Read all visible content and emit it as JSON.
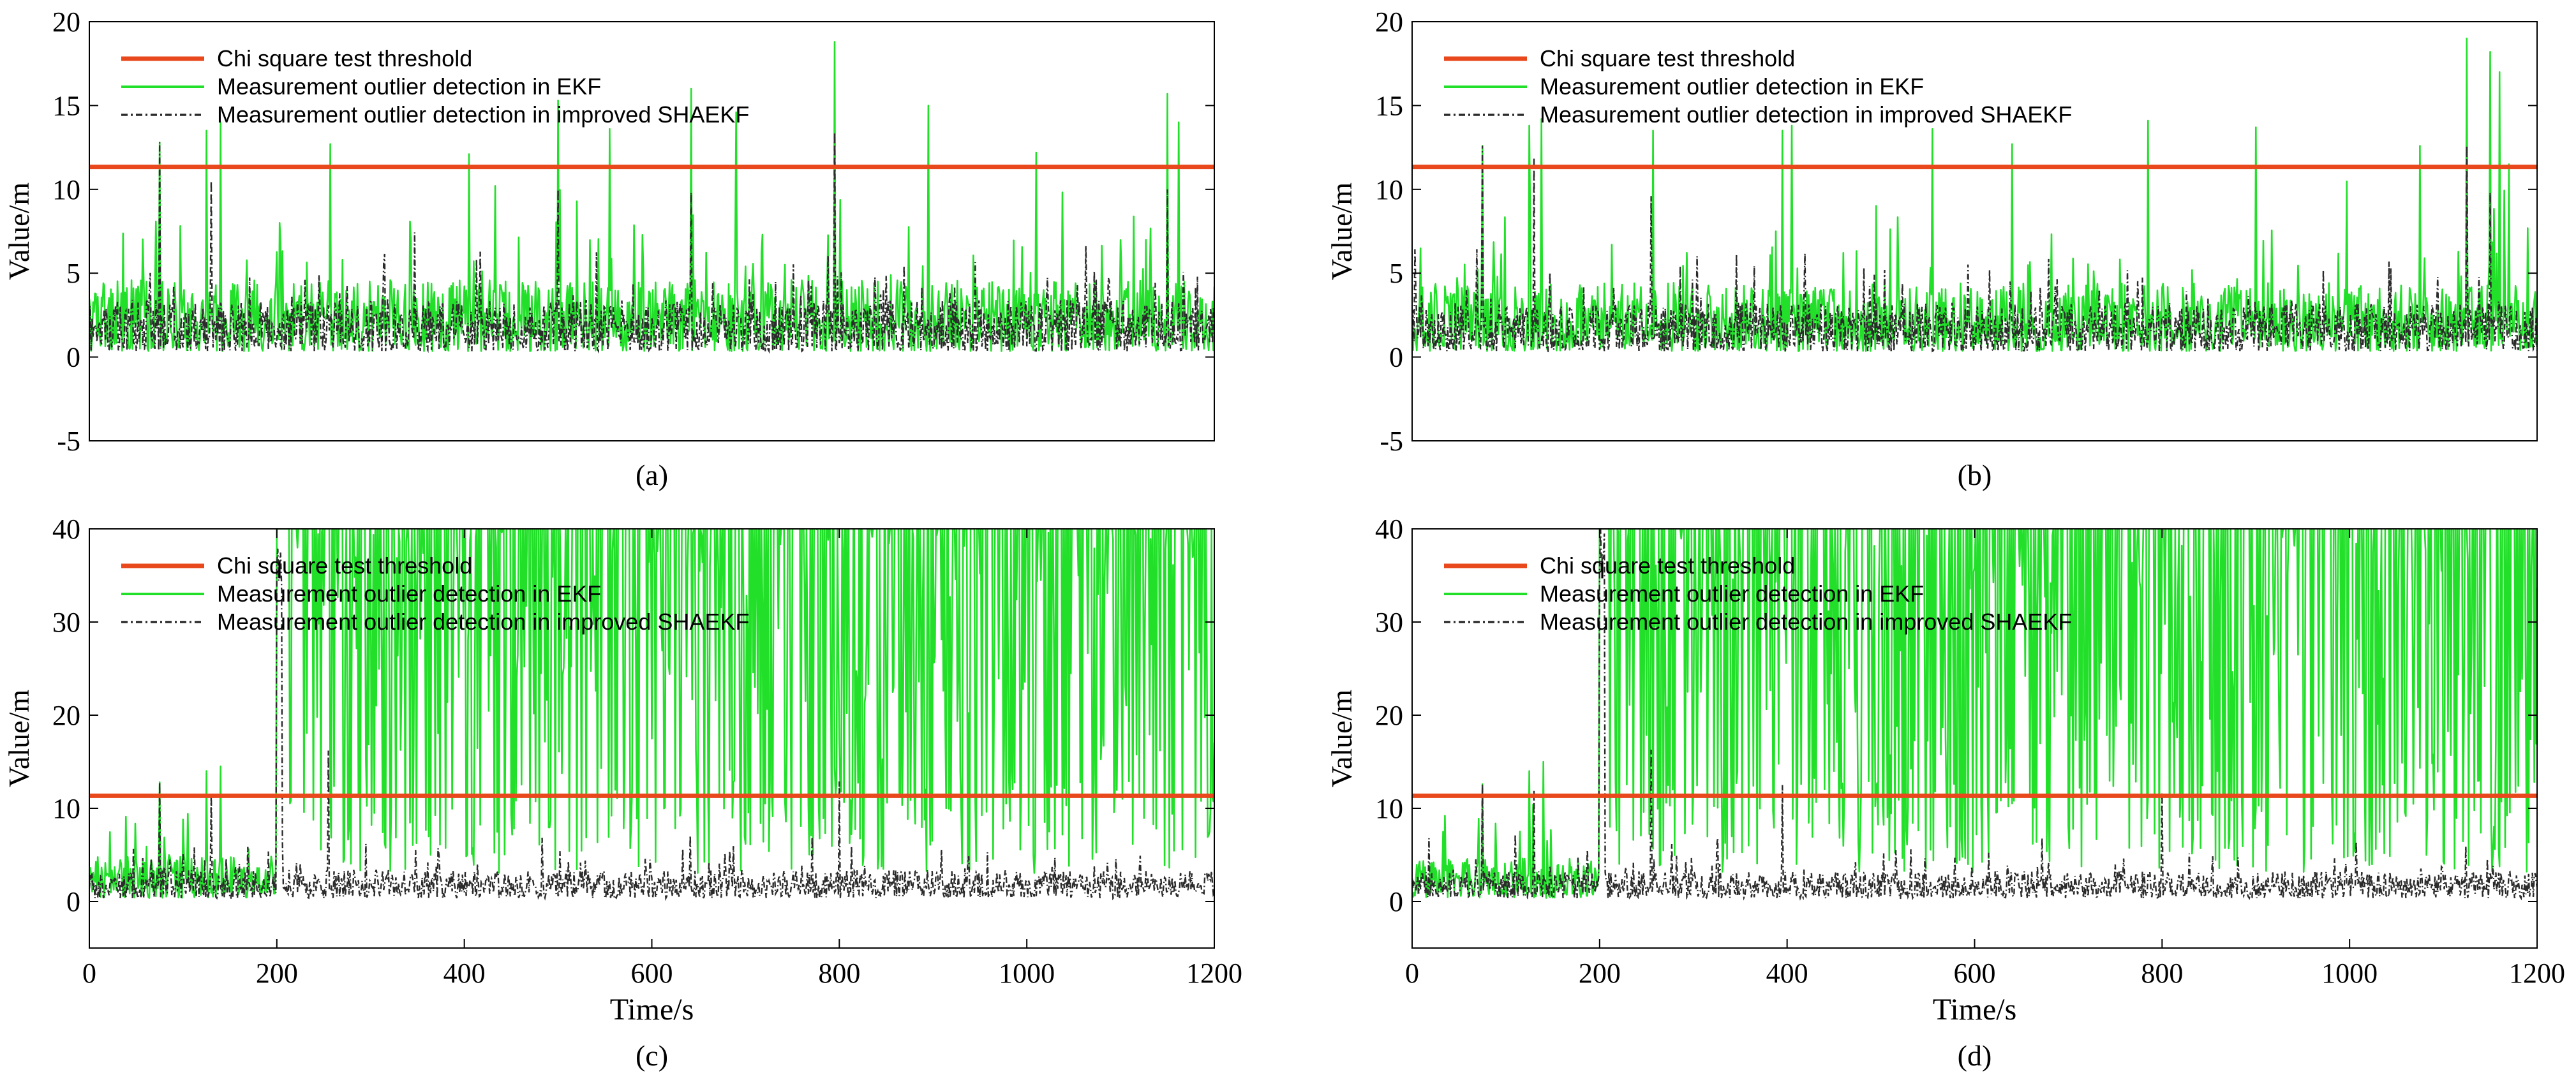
{
  "figure": {
    "legend_labels": [
      "Chi square test threshold",
      "Measurement outlier detection in EKF",
      "Measurement outlier detection in improved SHAEKF"
    ],
    "colors": {
      "threshold": "#e8481b",
      "ekf": "#22e02a",
      "shaekf": "#2b2b2b",
      "axis": "#000000"
    }
  },
  "chart_data": [
    {
      "id": "a",
      "type": "line",
      "caption": "(a)",
      "title": "",
      "xlabel": "",
      "ylabel": "Value/m",
      "xlim": [
        0,
        1200
      ],
      "ylim": [
        -5,
        20
      ],
      "yticks": [
        "-5",
        "0",
        "5",
        "10",
        "15",
        "20"
      ],
      "ytick_values": [
        -5,
        0,
        5,
        10,
        15,
        20
      ],
      "xticks": [],
      "xtick_values": [],
      "threshold": 11.34,
      "fault_start": null,
      "ekf_peaks": [
        [
          75,
          12.8
        ],
        [
          125,
          13.5
        ],
        [
          140,
          14.0
        ],
        [
          257,
          12.7
        ],
        [
          405,
          12.1
        ],
        [
          500,
          15.3
        ],
        [
          555,
          13.6
        ],
        [
          642,
          16.0
        ],
        [
          690,
          14.6
        ],
        [
          795,
          18.8
        ],
        [
          895,
          15.0
        ],
        [
          1010,
          12.2
        ],
        [
          1150,
          15.7
        ],
        [
          1162,
          14.0
        ]
      ],
      "shaekf_peaks": [
        [
          75,
          12.8
        ],
        [
          130,
          10.5
        ],
        [
          500,
          10.0
        ],
        [
          642,
          9.8
        ],
        [
          795,
          13.4
        ],
        [
          1150,
          10.0
        ]
      ],
      "ekf_base": 2.5,
      "shaekf_base": 1.8,
      "series": [
        {
          "name": "Chi square test threshold",
          "values": [
            [
              0,
              11.34
            ],
            [
              1200,
              11.34
            ]
          ]
        },
        {
          "name": "Measurement outlier detection in EKF",
          "values": "dense time series 0–1200 s, baseline ~1–5 m, peaks listed in ekf_peaks"
        },
        {
          "name": "Measurement outlier detection in improved SHAEKF",
          "values": "dense time series 0–1200 s, baseline ~0.5–4 m, peaks listed in shaekf_peaks"
        }
      ],
      "legend_position": "top-left"
    },
    {
      "id": "b",
      "type": "line",
      "caption": "(b)",
      "title": "",
      "xlabel": "",
      "ylabel": "Value/m",
      "xlim": [
        0,
        1200
      ],
      "ylim": [
        -5,
        20
      ],
      "yticks": [
        "-5",
        "0",
        "5",
        "10",
        "15",
        "20"
      ],
      "ytick_values": [
        -5,
        0,
        5,
        10,
        15,
        20
      ],
      "xticks": [],
      "xtick_values": [],
      "threshold": 11.34,
      "fault_start": null,
      "ekf_peaks": [
        [
          75,
          12.6
        ],
        [
          125,
          13.8
        ],
        [
          138,
          14.2
        ],
        [
          257,
          13.5
        ],
        [
          395,
          13.5
        ],
        [
          405,
          13.8
        ],
        [
          555,
          13.6
        ],
        [
          640,
          12.7
        ],
        [
          785,
          14.1
        ],
        [
          900,
          13.7
        ],
        [
          1075,
          12.6
        ],
        [
          1125,
          19.0
        ],
        [
          1150,
          18.2
        ],
        [
          1160,
          17.0
        ],
        [
          1170,
          11.5
        ]
      ],
      "shaekf_peaks": [
        [
          75,
          12.6
        ],
        [
          130,
          11.9
        ],
        [
          255,
          9.6
        ],
        [
          1125,
          12.6
        ],
        [
          1150,
          9.8
        ]
      ],
      "ekf_base": 2.4,
      "shaekf_base": 1.7,
      "series": [
        {
          "name": "Chi square test threshold",
          "values": [
            [
              0,
              11.34
            ],
            [
              1200,
              11.34
            ]
          ]
        },
        {
          "name": "Measurement outlier detection in EKF",
          "values": "dense time series 0–1200 s, baseline ~1–5 m, peaks listed in ekf_peaks"
        },
        {
          "name": "Measurement outlier detection in improved SHAEKF",
          "values": "dense time series 0–1200 s, baseline ~0.5–4 m, peaks listed in shaekf_peaks"
        }
      ],
      "legend_position": "top-left"
    },
    {
      "id": "c",
      "type": "line",
      "caption": "(c)",
      "title": "",
      "xlabel": "Time/s",
      "ylabel": "Value/m",
      "xlim": [
        0,
        1200
      ],
      "ylim": [
        -5,
        40
      ],
      "yticks": [
        "0",
        "10",
        "20",
        "30",
        "40"
      ],
      "ytick_values": [
        0,
        10,
        20,
        30,
        40
      ],
      "xticks": [
        "0",
        "200",
        "400",
        "600",
        "800",
        "1000",
        "1200"
      ],
      "xtick_values": [
        0,
        200,
        400,
        600,
        800,
        1000,
        1200
      ],
      "threshold": 11.34,
      "fault_start": 200,
      "ekf_peaks": [
        [
          75,
          12.8
        ],
        [
          125,
          14.0
        ],
        [
          140,
          14.5
        ]
      ],
      "shaekf_peaks": [
        [
          75,
          12.8
        ],
        [
          130,
          11.5
        ],
        [
          255,
          16.2
        ],
        [
          800,
          12.9
        ]
      ],
      "ekf_base": 2.5,
      "shaekf_base": 1.8,
      "series": [
        {
          "name": "Chi square test threshold",
          "values": [
            [
              0,
              11.34
            ],
            [
              1200,
              11.34
            ]
          ]
        },
        {
          "name": "Measurement outlier detection in EKF",
          "values": "0–200 s baseline ~1–8 m; after 200 s saturates at 40 m with frequent dips down to ~5–30 m"
        },
        {
          "name": "Measurement outlier detection in improved SHAEKF",
          "values": "spike to 40 m near 200 s, otherwise baseline ~0.5–5 m, peaks listed in shaekf_peaks"
        }
      ],
      "legend_position": "top-left"
    },
    {
      "id": "d",
      "type": "line",
      "caption": "(d)",
      "title": "",
      "xlabel": "Time/s",
      "ylabel": "Value/m",
      "xlim": [
        0,
        1200
      ],
      "ylim": [
        -5,
        40
      ],
      "yticks": [
        "0",
        "10",
        "20",
        "30",
        "40"
      ],
      "ytick_values": [
        0,
        10,
        20,
        30,
        40
      ],
      "xticks": [
        "0",
        "200",
        "400",
        "600",
        "800",
        "1000",
        "1200"
      ],
      "xtick_values": [
        0,
        200,
        400,
        600,
        800,
        1000,
        1200
      ],
      "threshold": 11.34,
      "fault_start": 200,
      "ekf_peaks": [
        [
          75,
          12.6
        ],
        [
          125,
          14.0
        ],
        [
          140,
          15.0
        ]
      ],
      "shaekf_peaks": [
        [
          75,
          12.6
        ],
        [
          130,
          12.0
        ],
        [
          255,
          16.3
        ],
        [
          395,
          12.5
        ],
        [
          800,
          11.7
        ]
      ],
      "ekf_base": 2.4,
      "shaekf_base": 1.7,
      "series": [
        {
          "name": "Chi square test threshold",
          "values": [
            [
              0,
              11.34
            ],
            [
              1200,
              11.34
            ]
          ]
        },
        {
          "name": "Measurement outlier detection in EKF",
          "values": "0–200 s baseline ~1–8 m; after 200 s saturates at 40 m with frequent dips down to ~5–30 m"
        },
        {
          "name": "Measurement outlier detection in improved SHAEKF",
          "values": "spike to 40 m near 200 s, otherwise baseline ~0.5–5 m, peaks listed in shaekf_peaks"
        }
      ],
      "legend_position": "top-left"
    }
  ]
}
